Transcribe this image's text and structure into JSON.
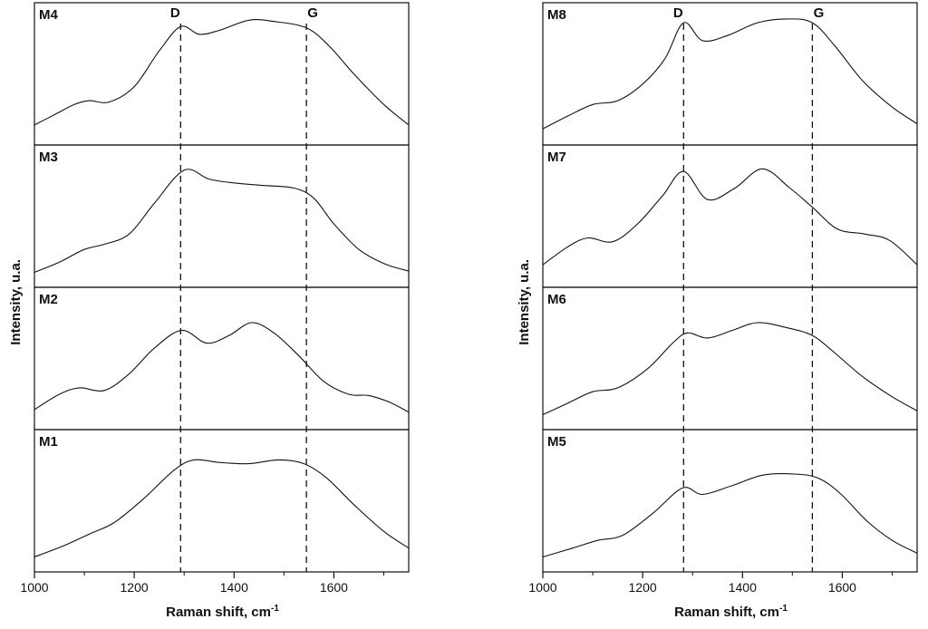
{
  "figure": {
    "ylabel": "Intensity, u.a.",
    "xlabel_base": "Raman shift, cm",
    "xlabel_sup": "-1"
  },
  "chart_data": [
    {
      "type": "line",
      "title": "Raman spectra, left column (samples M4, M3, M2, M1)",
      "xlabel": "Raman shift, cm^-1",
      "ylabel": "Intensity, u.a.",
      "y_units": "arbitrary (normalized 0-1 per panel)",
      "xlim": [
        1000,
        1750
      ],
      "xticks": [
        1000,
        1200,
        1400,
        1600
      ],
      "minor_xticks": [
        1100,
        1300,
        1500,
        1700
      ],
      "markers": [
        {
          "label": "D",
          "x": 1293
        },
        {
          "label": "G",
          "x": 1545
        }
      ],
      "panels": [
        {
          "label": "M4",
          "points": [
            [
              1000,
              0.1
            ],
            [
              1040,
              0.18
            ],
            [
              1080,
              0.26
            ],
            [
              1110,
              0.29
            ],
            [
              1150,
              0.28
            ],
            [
              1200,
              0.4
            ],
            [
              1250,
              0.68
            ],
            [
              1293,
              0.87
            ],
            [
              1330,
              0.81
            ],
            [
              1370,
              0.84
            ],
            [
              1430,
              0.92
            ],
            [
              1480,
              0.91
            ],
            [
              1545,
              0.86
            ],
            [
              1590,
              0.72
            ],
            [
              1640,
              0.5
            ],
            [
              1700,
              0.26
            ],
            [
              1750,
              0.1
            ]
          ]
        },
        {
          "label": "M3",
          "points": [
            [
              1000,
              0.06
            ],
            [
              1050,
              0.14
            ],
            [
              1100,
              0.24
            ],
            [
              1140,
              0.28
            ],
            [
              1190,
              0.36
            ],
            [
              1240,
              0.6
            ],
            [
              1300,
              0.86
            ],
            [
              1350,
              0.79
            ],
            [
              1400,
              0.76
            ],
            [
              1460,
              0.74
            ],
            [
              1520,
              0.72
            ],
            [
              1560,
              0.64
            ],
            [
              1600,
              0.44
            ],
            [
              1650,
              0.24
            ],
            [
              1700,
              0.13
            ],
            [
              1750,
              0.07
            ]
          ]
        },
        {
          "label": "M2",
          "points": [
            [
              1000,
              0.1
            ],
            [
              1050,
              0.22
            ],
            [
              1090,
              0.27
            ],
            [
              1140,
              0.25
            ],
            [
              1190,
              0.38
            ],
            [
              1240,
              0.58
            ],
            [
              1295,
              0.72
            ],
            [
              1345,
              0.62
            ],
            [
              1390,
              0.68
            ],
            [
              1435,
              0.78
            ],
            [
              1480,
              0.7
            ],
            [
              1530,
              0.52
            ],
            [
              1580,
              0.32
            ],
            [
              1630,
              0.22
            ],
            [
              1670,
              0.21
            ],
            [
              1710,
              0.16
            ],
            [
              1750,
              0.08
            ]
          ]
        },
        {
          "label": "M1",
          "points": [
            [
              1000,
              0.06
            ],
            [
              1060,
              0.15
            ],
            [
              1110,
              0.24
            ],
            [
              1160,
              0.33
            ],
            [
              1220,
              0.52
            ],
            [
              1280,
              0.74
            ],
            [
              1320,
              0.82
            ],
            [
              1370,
              0.8
            ],
            [
              1430,
              0.79
            ],
            [
              1490,
              0.82
            ],
            [
              1540,
              0.79
            ],
            [
              1585,
              0.68
            ],
            [
              1640,
              0.47
            ],
            [
              1700,
              0.26
            ],
            [
              1750,
              0.13
            ]
          ]
        }
      ]
    },
    {
      "type": "line",
      "title": "Raman spectra, right column (samples M8, M7, M6, M5)",
      "xlabel": "Raman shift, cm^-1",
      "ylabel": "Intensity, u.a.",
      "y_units": "arbitrary (normalized 0-1 per panel)",
      "xlim": [
        1000,
        1750
      ],
      "xticks": [
        1000,
        1200,
        1400,
        1600
      ],
      "minor_xticks": [
        1100,
        1300,
        1500,
        1700
      ],
      "markers": [
        {
          "label": "D",
          "x": 1282
        },
        {
          "label": "G",
          "x": 1540
        }
      ],
      "panels": [
        {
          "label": "M8",
          "points": [
            [
              1000,
              0.07
            ],
            [
              1050,
              0.17
            ],
            [
              1100,
              0.26
            ],
            [
              1150,
              0.29
            ],
            [
              1200,
              0.42
            ],
            [
              1245,
              0.62
            ],
            [
              1282,
              0.9
            ],
            [
              1320,
              0.76
            ],
            [
              1370,
              0.8
            ],
            [
              1430,
              0.9
            ],
            [
              1490,
              0.93
            ],
            [
              1540,
              0.9
            ],
            [
              1585,
              0.72
            ],
            [
              1640,
              0.45
            ],
            [
              1700,
              0.24
            ],
            [
              1750,
              0.11
            ]
          ]
        },
        {
          "label": "M7",
          "points": [
            [
              1000,
              0.12
            ],
            [
              1050,
              0.26
            ],
            [
              1090,
              0.33
            ],
            [
              1140,
              0.3
            ],
            [
              1190,
              0.44
            ],
            [
              1240,
              0.66
            ],
            [
              1282,
              0.85
            ],
            [
              1330,
              0.63
            ],
            [
              1385,
              0.72
            ],
            [
              1440,
              0.87
            ],
            [
              1495,
              0.72
            ],
            [
              1540,
              0.57
            ],
            [
              1590,
              0.4
            ],
            [
              1645,
              0.36
            ],
            [
              1695,
              0.31
            ],
            [
              1750,
              0.12
            ]
          ]
        },
        {
          "label": "M6",
          "points": [
            [
              1000,
              0.06
            ],
            [
              1050,
              0.15
            ],
            [
              1100,
              0.24
            ],
            [
              1150,
              0.27
            ],
            [
              1210,
              0.42
            ],
            [
              1260,
              0.62
            ],
            [
              1290,
              0.7
            ],
            [
              1330,
              0.66
            ],
            [
              1380,
              0.72
            ],
            [
              1430,
              0.78
            ],
            [
              1490,
              0.74
            ],
            [
              1540,
              0.68
            ],
            [
              1580,
              0.56
            ],
            [
              1640,
              0.36
            ],
            [
              1700,
              0.2
            ],
            [
              1750,
              0.09
            ]
          ]
        },
        {
          "label": "M5",
          "points": [
            [
              1000,
              0.06
            ],
            [
              1060,
              0.13
            ],
            [
              1110,
              0.19
            ],
            [
              1160,
              0.23
            ],
            [
              1220,
              0.4
            ],
            [
              1280,
              0.6
            ],
            [
              1320,
              0.55
            ],
            [
              1380,
              0.62
            ],
            [
              1440,
              0.7
            ],
            [
              1500,
              0.71
            ],
            [
              1550,
              0.68
            ],
            [
              1595,
              0.56
            ],
            [
              1650,
              0.34
            ],
            [
              1700,
              0.19
            ],
            [
              1750,
              0.09
            ]
          ]
        }
      ]
    }
  ]
}
